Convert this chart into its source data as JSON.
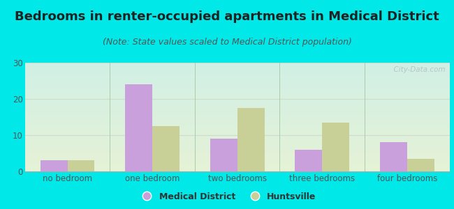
{
  "title": "Bedrooms in renter-occupied apartments in Medical District",
  "subtitle": "(Note: State values scaled to Medical District population)",
  "categories": [
    "no bedroom",
    "one bedroom",
    "two bedrooms",
    "three bedrooms",
    "four bedrooms"
  ],
  "medical_district": [
    3,
    24,
    9,
    6,
    8
  ],
  "huntsville": [
    3,
    12.5,
    17.5,
    13.5,
    3.5
  ],
  "bar_color_medical": "#c9a0dc",
  "bar_color_huntsville": "#c8d098",
  "background_color": "#00e8e8",
  "ylim": [
    0,
    30
  ],
  "yticks": [
    0,
    10,
    20,
    30
  ],
  "legend_labels": [
    "Medical District",
    "Huntsville"
  ],
  "bar_width": 0.32,
  "title_fontsize": 13,
  "subtitle_fontsize": 9,
  "watermark": "  City-Data.com",
  "grid_color": "#ccddcc",
  "divider_color": "#aaccaa"
}
